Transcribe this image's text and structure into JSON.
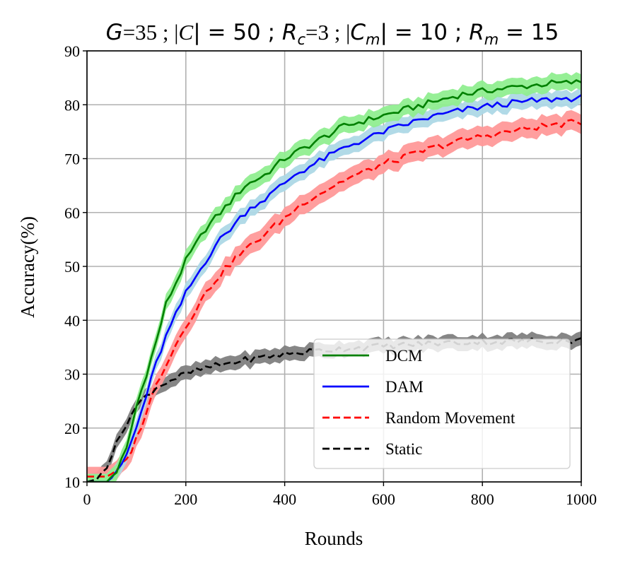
{
  "chart_data": {
    "type": "line",
    "title_parts": [
      {
        "text": "G",
        "style": "italic-sans"
      },
      {
        "text": "=35 ; |",
        "style": "serif"
      },
      {
        "text": "C",
        "style": "italic-serif"
      },
      {
        "text": "| = 50 ; ",
        "style": "sans"
      },
      {
        "text": "R",
        "style": "italic-sans"
      },
      {
        "text": "c",
        "style": "sub-italic-sans"
      },
      {
        "text": "=3 ; |",
        "style": "serif"
      },
      {
        "text": "C",
        "style": "italic-sans"
      },
      {
        "text": "m",
        "style": "sub-italic-sans"
      },
      {
        "text": "| = 10 ; ",
        "style": "sans"
      },
      {
        "text": "R",
        "style": "italic-sans"
      },
      {
        "text": "m",
        "style": "sub-italic-sans"
      },
      {
        "text": " = 15",
        "style": "sans"
      }
    ],
    "xlabel": "Rounds",
    "ylabel": "Accuracy(%)",
    "xlim": [
      0,
      1000
    ],
    "ylim": [
      10,
      90
    ],
    "xticks": [
      "0",
      "200",
      "400",
      "600",
      "800",
      "1000"
    ],
    "yticks": [
      "10",
      "20",
      "30",
      "40",
      "50",
      "60",
      "70",
      "80",
      "90"
    ],
    "grid": true,
    "legend_position": "lower-right",
    "series": [
      {
        "name": "DCM",
        "color": "#008000",
        "band_color": "#90ee90",
        "dash": "solid",
        "points": [
          [
            0,
            10
          ],
          [
            40,
            10
          ],
          [
            60,
            12
          ],
          [
            80,
            16
          ],
          [
            100,
            24
          ],
          [
            120,
            30
          ],
          [
            140,
            36
          ],
          [
            160,
            43
          ],
          [
            180,
            47
          ],
          [
            200,
            51
          ],
          [
            220,
            54
          ],
          [
            240,
            57
          ],
          [
            260,
            59
          ],
          [
            280,
            61
          ],
          [
            300,
            63
          ],
          [
            320,
            65
          ],
          [
            340,
            66
          ],
          [
            360,
            67
          ],
          [
            380,
            68.5
          ],
          [
            400,
            70
          ],
          [
            420,
            71
          ],
          [
            440,
            72
          ],
          [
            460,
            73
          ],
          [
            480,
            74
          ],
          [
            500,
            75
          ],
          [
            520,
            76
          ],
          [
            540,
            76.5
          ],
          [
            560,
            77
          ],
          [
            580,
            77.5
          ],
          [
            600,
            78
          ],
          [
            620,
            78.5
          ],
          [
            640,
            79
          ],
          [
            660,
            79.5
          ],
          [
            680,
            80
          ],
          [
            700,
            80.5
          ],
          [
            720,
            81
          ],
          [
            740,
            81.5
          ],
          [
            760,
            82
          ],
          [
            780,
            82.2
          ],
          [
            800,
            82.5
          ],
          [
            820,
            82.8
          ],
          [
            840,
            83
          ],
          [
            860,
            83.2
          ],
          [
            880,
            83.4
          ],
          [
            900,
            83.6
          ],
          [
            920,
            83.8
          ],
          [
            940,
            84
          ],
          [
            960,
            84
          ],
          [
            980,
            84.1
          ],
          [
            1000,
            84.2
          ]
        ],
        "band": 1.5
      },
      {
        "name": "DAM",
        "color": "#0000ff",
        "band_color": "#add8e6",
        "dash": "solid",
        "points": [
          [
            0,
            10
          ],
          [
            40,
            10
          ],
          [
            60,
            11.5
          ],
          [
            80,
            15
          ],
          [
            100,
            20
          ],
          [
            120,
            26
          ],
          [
            140,
            32
          ],
          [
            160,
            37
          ],
          [
            180,
            41
          ],
          [
            200,
            45
          ],
          [
            220,
            48
          ],
          [
            240,
            51
          ],
          [
            260,
            54
          ],
          [
            280,
            56
          ],
          [
            300,
            58
          ],
          [
            320,
            60
          ],
          [
            340,
            61.5
          ],
          [
            360,
            62.5
          ],
          [
            380,
            64
          ],
          [
            400,
            65.5
          ],
          [
            420,
            67
          ],
          [
            440,
            68
          ],
          [
            460,
            69
          ],
          [
            480,
            70
          ],
          [
            500,
            71
          ],
          [
            520,
            72
          ],
          [
            540,
            72.8
          ],
          [
            560,
            73.5
          ],
          [
            580,
            74.2
          ],
          [
            600,
            75
          ],
          [
            620,
            75.6
          ],
          [
            640,
            76.2
          ],
          [
            660,
            76.8
          ],
          [
            680,
            77.3
          ],
          [
            700,
            77.8
          ],
          [
            720,
            78.2
          ],
          [
            740,
            78.6
          ],
          [
            760,
            79
          ],
          [
            780,
            79.3
          ],
          [
            800,
            79.6
          ],
          [
            820,
            79.9
          ],
          [
            840,
            80.1
          ],
          [
            860,
            80.3
          ],
          [
            880,
            80.5
          ],
          [
            900,
            80.7
          ],
          [
            920,
            80.8
          ],
          [
            940,
            81
          ],
          [
            960,
            81.1
          ],
          [
            980,
            81.2
          ],
          [
            1000,
            81.3
          ]
        ],
        "band": 1.5
      },
      {
        "name": "Random Movement",
        "color": "#ff0000",
        "band_color": "#ff9999",
        "dash": "dashed",
        "points": [
          [
            0,
            11
          ],
          [
            40,
            11
          ],
          [
            60,
            12
          ],
          [
            80,
            14
          ],
          [
            100,
            18
          ],
          [
            120,
            23
          ],
          [
            140,
            28
          ],
          [
            160,
            32
          ],
          [
            180,
            35.5
          ],
          [
            200,
            39
          ],
          [
            220,
            42
          ],
          [
            240,
            45
          ],
          [
            260,
            47.5
          ],
          [
            280,
            49.5
          ],
          [
            300,
            51.5
          ],
          [
            320,
            53
          ],
          [
            340,
            54.5
          ],
          [
            360,
            56
          ],
          [
            380,
            57.5
          ],
          [
            400,
            59
          ],
          [
            420,
            60.5
          ],
          [
            440,
            62
          ],
          [
            460,
            63
          ],
          [
            480,
            64
          ],
          [
            500,
            65
          ],
          [
            520,
            66
          ],
          [
            540,
            66.8
          ],
          [
            560,
            67.5
          ],
          [
            580,
            68.2
          ],
          [
            600,
            69
          ],
          [
            620,
            69.6
          ],
          [
            640,
            70.2
          ],
          [
            660,
            70.8
          ],
          [
            680,
            71.4
          ],
          [
            700,
            72
          ],
          [
            720,
            72.5
          ],
          [
            740,
            73
          ],
          [
            760,
            73.4
          ],
          [
            780,
            73.8
          ],
          [
            800,
            74.2
          ],
          [
            820,
            74.5
          ],
          [
            840,
            74.8
          ],
          [
            860,
            75.1
          ],
          [
            880,
            75.4
          ],
          [
            900,
            75.7
          ],
          [
            920,
            76
          ],
          [
            940,
            76.2
          ],
          [
            960,
            76.4
          ],
          [
            980,
            76.6
          ],
          [
            1000,
            76.8
          ]
        ],
        "band": 1.8
      },
      {
        "name": "Static",
        "color": "#000000",
        "band_color": "#808080",
        "dash": "dashed",
        "points": [
          [
            0,
            10
          ],
          [
            20,
            10.5
          ],
          [
            40,
            13
          ],
          [
            60,
            17
          ],
          [
            80,
            21
          ],
          [
            100,
            24
          ],
          [
            120,
            26
          ],
          [
            140,
            27.5
          ],
          [
            160,
            28.5
          ],
          [
            180,
            29.3
          ],
          [
            200,
            30
          ],
          [
            220,
            30.6
          ],
          [
            240,
            31.1
          ],
          [
            260,
            31.5
          ],
          [
            280,
            31.9
          ],
          [
            300,
            32.3
          ],
          [
            320,
            32.6
          ],
          [
            340,
            32.9
          ],
          [
            360,
            33.2
          ],
          [
            380,
            33.5
          ],
          [
            400,
            33.7
          ],
          [
            420,
            33.9
          ],
          [
            440,
            34.1
          ],
          [
            460,
            34.3
          ],
          [
            480,
            34.5
          ],
          [
            500,
            34.6
          ],
          [
            520,
            34.8
          ],
          [
            540,
            34.9
          ],
          [
            560,
            35
          ],
          [
            580,
            35.1
          ],
          [
            600,
            35.2
          ],
          [
            620,
            35.3
          ],
          [
            640,
            35.4
          ],
          [
            660,
            35.5
          ],
          [
            680,
            35.6
          ],
          [
            700,
            35.7
          ],
          [
            720,
            35.8
          ],
          [
            740,
            35.85
          ],
          [
            760,
            35.9
          ],
          [
            780,
            35.95
          ],
          [
            800,
            36
          ],
          [
            820,
            36
          ],
          [
            840,
            36.05
          ],
          [
            860,
            36.1
          ],
          [
            880,
            36.1
          ],
          [
            900,
            36.15
          ],
          [
            920,
            36.2
          ],
          [
            940,
            36.2
          ],
          [
            960,
            36.2
          ],
          [
            980,
            36.25
          ],
          [
            1000,
            36.3
          ]
        ],
        "band": 1.3
      }
    ]
  }
}
